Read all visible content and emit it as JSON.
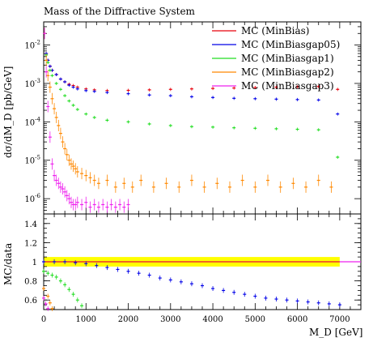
{
  "chart_data": [
    {
      "type": "scatter",
      "title": "Mass of the Diffractive System",
      "ylabel": "dσ/dM_D [pb/GeV]",
      "xlabel": "M_D [GeV]",
      "xlim": [
        0,
        7500
      ],
      "ylim": [
        4e-07,
        0.04
      ],
      "yscale": "log",
      "y_ticks": [
        "10^-6",
        "10^-5",
        "10^-4",
        "10^-3",
        "10^-2"
      ],
      "legend_position": "top-right",
      "series": [
        {
          "name": "MC (MinBias)",
          "color": "#e8000b",
          "x": [
            20,
            60,
            100,
            150,
            200,
            300,
            400,
            500,
            600,
            700,
            800,
            1000,
            1200,
            1500,
            2000,
            2500,
            3000,
            3500,
            4000,
            4500,
            5000,
            5500,
            6000,
            6500,
            6950
          ],
          "y": [
            0.02,
            0.006,
            0.004,
            0.0028,
            0.0022,
            0.0017,
            0.0013,
            0.0011,
            0.00095,
            0.00088,
            0.0008,
            0.00072,
            0.00068,
            0.00065,
            0.00066,
            0.00068,
            0.0007,
            0.00072,
            0.00074,
            0.00076,
            0.00078,
            0.0008,
            0.00082,
            0.00083,
            0.0007
          ]
        },
        {
          "name": "MC (MinBiasgap05)",
          "color": "#0000e8",
          "x": [
            20,
            60,
            100,
            150,
            200,
            300,
            400,
            500,
            600,
            700,
            800,
            1000,
            1200,
            1500,
            2000,
            2500,
            3000,
            3500,
            4000,
            4500,
            5000,
            5500,
            6000,
            6500,
            6950
          ],
          "y": [
            0.02,
            0.006,
            0.004,
            0.0028,
            0.0022,
            0.0017,
            0.0013,
            0.0011,
            0.0009,
            0.0008,
            0.00072,
            0.00065,
            0.00062,
            0.00058,
            0.00054,
            0.0005,
            0.00048,
            0.00045,
            0.00043,
            0.00041,
            0.0004,
            0.00039,
            0.00038,
            0.00037,
            0.00016
          ]
        },
        {
          "name": "MC (MinBiasgap1)",
          "color": "#20dd20",
          "x": [
            20,
            60,
            100,
            150,
            200,
            300,
            400,
            500,
            600,
            700,
            800,
            1000,
            1200,
            1500,
            2000,
            2500,
            3000,
            3500,
            4000,
            4500,
            5000,
            5500,
            6000,
            6500,
            6950
          ],
          "y": [
            0.02,
            0.0055,
            0.0035,
            0.0022,
            0.0016,
            0.001,
            0.0007,
            0.00048,
            0.00035,
            0.00027,
            0.00021,
            0.00016,
            0.00013,
            0.00011,
            0.0001,
            8.8e-05,
            8e-05,
            7.5e-05,
            7.3e-05,
            7e-05,
            6.8e-05,
            6.6e-05,
            6.4e-05,
            6.2e-05,
            1.2e-05
          ]
        },
        {
          "name": "MC (MinBiasgap2)",
          "color": "#ff8800",
          "x": [
            20,
            60,
            100,
            150,
            200,
            250,
            300,
            350,
            400,
            450,
            500,
            550,
            600,
            650,
            700,
            750,
            800,
            900,
            1000,
            1100,
            1200,
            1300,
            1500,
            1700,
            1900,
            2100,
            2300,
            2600,
            2900,
            3200,
            3500,
            3800,
            4100,
            4400,
            4700,
            5000,
            5300,
            5600,
            5900,
            6200,
            6500,
            6800
          ],
          "y": [
            0.02,
            0.004,
            0.0016,
            0.0008,
            0.0004,
            0.00022,
            0.00013,
            8e-05,
            5e-05,
            3e-05,
            2e-05,
            1.4e-05,
            1e-05,
            8e-06,
            7e-06,
            6e-06,
            5e-06,
            4.5e-06,
            4e-06,
            3.5e-06,
            3e-06,
            2.5e-06,
            3e-06,
            2e-06,
            2.5e-06,
            2e-06,
            3e-06,
            2e-06,
            2.5e-06,
            2e-06,
            3e-06,
            2e-06,
            2.5e-06,
            2e-06,
            3e-06,
            2e-06,
            3e-06,
            2e-06,
            2.5e-06,
            2e-06,
            3e-06,
            2e-06
          ]
        },
        {
          "name": "MC (MinBiasgap3)",
          "color": "#ee22ee",
          "x": [
            20,
            60,
            100,
            150,
            200,
            250,
            300,
            350,
            400,
            450,
            500,
            550,
            600,
            650,
            700,
            750,
            800,
            900,
            1000,
            1100,
            1200,
            1300,
            1400,
            1500,
            1600,
            1700,
            1800,
            1900,
            2000
          ],
          "y": [
            0.02,
            0.002,
            0.00025,
            4e-05,
            8e-06,
            4e-06,
            3e-06,
            2.5e-06,
            2e-06,
            1.8e-06,
            1.5e-06,
            1.2e-06,
            1e-06,
            8e-07,
            7e-07,
            7e-07,
            8e-07,
            7e-07,
            8e-07,
            6e-07,
            7e-07,
            6e-07,
            7e-07,
            6e-07,
            7e-07,
            6e-07,
            7e-07,
            6e-07,
            7e-07
          ]
        }
      ]
    },
    {
      "type": "scatter",
      "ylabel": "MC/data",
      "xlabel": "M_D [GeV]",
      "xlim": [
        0,
        7500
      ],
      "ylim": [
        0.5,
        1.5
      ],
      "x_ticks": [
        0,
        1000,
        2000,
        3000,
        4000,
        5000,
        6000,
        7000
      ],
      "y_ticks": [
        0.6,
        0.8,
        1,
        1.2,
        1.4
      ],
      "band": {
        "color": "#ffff00",
        "x": [
          0,
          7000
        ],
        "lo": 0.95,
        "hi": 1.05
      },
      "reference_line": {
        "y": 1,
        "color": "#ee22ee"
      },
      "series": [
        {
          "name": "MC (MinBias)",
          "color": "#e8000b",
          "x": [
            0,
            7000,
            7500
          ],
          "y": [
            1,
            1,
            1
          ]
        },
        {
          "name": "MC (MinBiasgap05)",
          "color": "#0000e8",
          "x": [
            0,
            250,
            500,
            750,
            1000,
            1250,
            1500,
            1750,
            2000,
            2250,
            2500,
            2750,
            3000,
            3250,
            3500,
            3750,
            4000,
            4250,
            4500,
            4750,
            5000,
            5250,
            5500,
            5750,
            6000,
            6250,
            6500,
            6750,
            7000
          ],
          "y": [
            1.0,
            1.0,
            1.0,
            0.99,
            0.98,
            0.96,
            0.94,
            0.92,
            0.9,
            0.88,
            0.86,
            0.83,
            0.81,
            0.79,
            0.77,
            0.75,
            0.72,
            0.7,
            0.68,
            0.66,
            0.64,
            0.62,
            0.61,
            0.6,
            0.59,
            0.58,
            0.57,
            0.56,
            0.55
          ]
        },
        {
          "name": "MC (MinBiasgap1)",
          "color": "#20dd20",
          "x": [
            0,
            100,
            200,
            300,
            400,
            500,
            600,
            700,
            800,
            900
          ],
          "y": [
            0.9,
            0.88,
            0.86,
            0.84,
            0.8,
            0.76,
            0.71,
            0.66,
            0.6,
            0.54
          ]
        },
        {
          "name": "MC (MinBiasgap2)",
          "color": "#ff8800",
          "x": [
            0,
            100,
            150,
            200
          ],
          "y": [
            0.72,
            0.64,
            0.57,
            0.51
          ]
        },
        {
          "name": "MC (MinBiasgap3)",
          "color": "#ee22ee",
          "x": [
            0,
            50,
            100
          ],
          "y": [
            0.62,
            0.56,
            0.51
          ]
        }
      ]
    }
  ]
}
